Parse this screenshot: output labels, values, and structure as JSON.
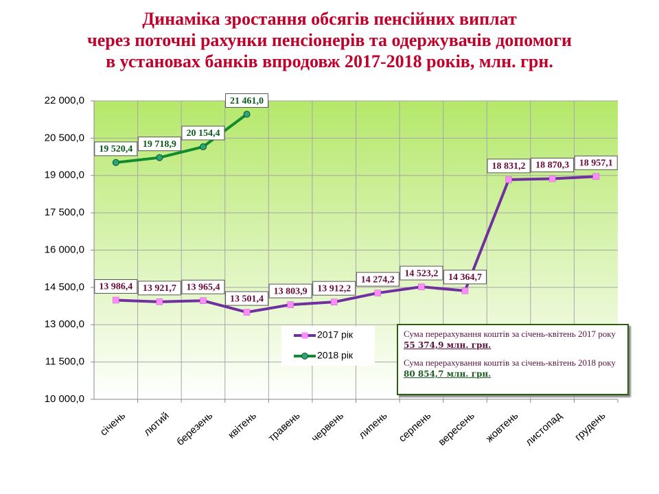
{
  "chart_data": {
    "type": "line",
    "title": [
      "Динаміка зростання обсягів пенсійних виплат",
      "через поточні рахунки пенсіонерів та одержувачів допомоги",
      "в установах банків впродовж 2017-2018 років, млн. грн."
    ],
    "categories": [
      "січень",
      "лютий",
      "березень",
      "квітень",
      "травень",
      "червень",
      "липень",
      "серпень",
      "вересень",
      "жовтень",
      "листопад",
      "грудень"
    ],
    "series": [
      {
        "name": "2017 рік",
        "color": "#7030a0",
        "marker_color": "#ff8cff",
        "values": [
          13986.4,
          13921.7,
          13965.4,
          13501.4,
          13803.9,
          13912.2,
          14274.2,
          14523.2,
          14364.7,
          18831.2,
          18870.3,
          18957.1
        ],
        "value_labels": [
          "13 986,4",
          "13 921,7",
          "13 965,4",
          "13 501,4",
          "13 803,9",
          "13 912,2",
          "14 274,2",
          "14 523,2",
          "14 364,7",
          "18 831,2",
          "18 870,3",
          "18 957,1"
        ]
      },
      {
        "name": "2018 рік",
        "color": "#128a2e",
        "marker_color": "#2aa57a",
        "values": [
          19520.4,
          19718.9,
          20154.4,
          21461.0,
          null,
          null,
          null,
          null,
          null,
          null,
          null,
          null
        ],
        "value_labels": [
          "19 520,4",
          "19 718,9",
          "20 154,4",
          "21 461,0",
          null,
          null,
          null,
          null,
          null,
          null,
          null,
          null
        ]
      }
    ],
    "ylim": [
      10000,
      22000
    ],
    "yticks": [
      {
        "value": 10000,
        "label": "10 000,0"
      },
      {
        "value": 11500,
        "label": "11 500,0"
      },
      {
        "value": 13000,
        "label": "13 000,0"
      },
      {
        "value": 14500,
        "label": "14 500,0"
      },
      {
        "value": 16000,
        "label": "16 000,0"
      },
      {
        "value": 17500,
        "label": "17 500,0"
      },
      {
        "value": 19000,
        "label": "19 000,0"
      },
      {
        "value": 20500,
        "label": "20 500,0"
      },
      {
        "value": 22000,
        "label": "22 000,0"
      }
    ],
    "grid": true,
    "notes": [
      {
        "text": "Сума перерахування коштів  за січень-квітень 2017 року ",
        "amount": " 55 374,9 млн. грн."
      },
      {
        "text": "Сума перерахування коштів  за січень-квітень 2018 року ",
        "amount": "80 854,7 млн. грн."
      }
    ]
  }
}
